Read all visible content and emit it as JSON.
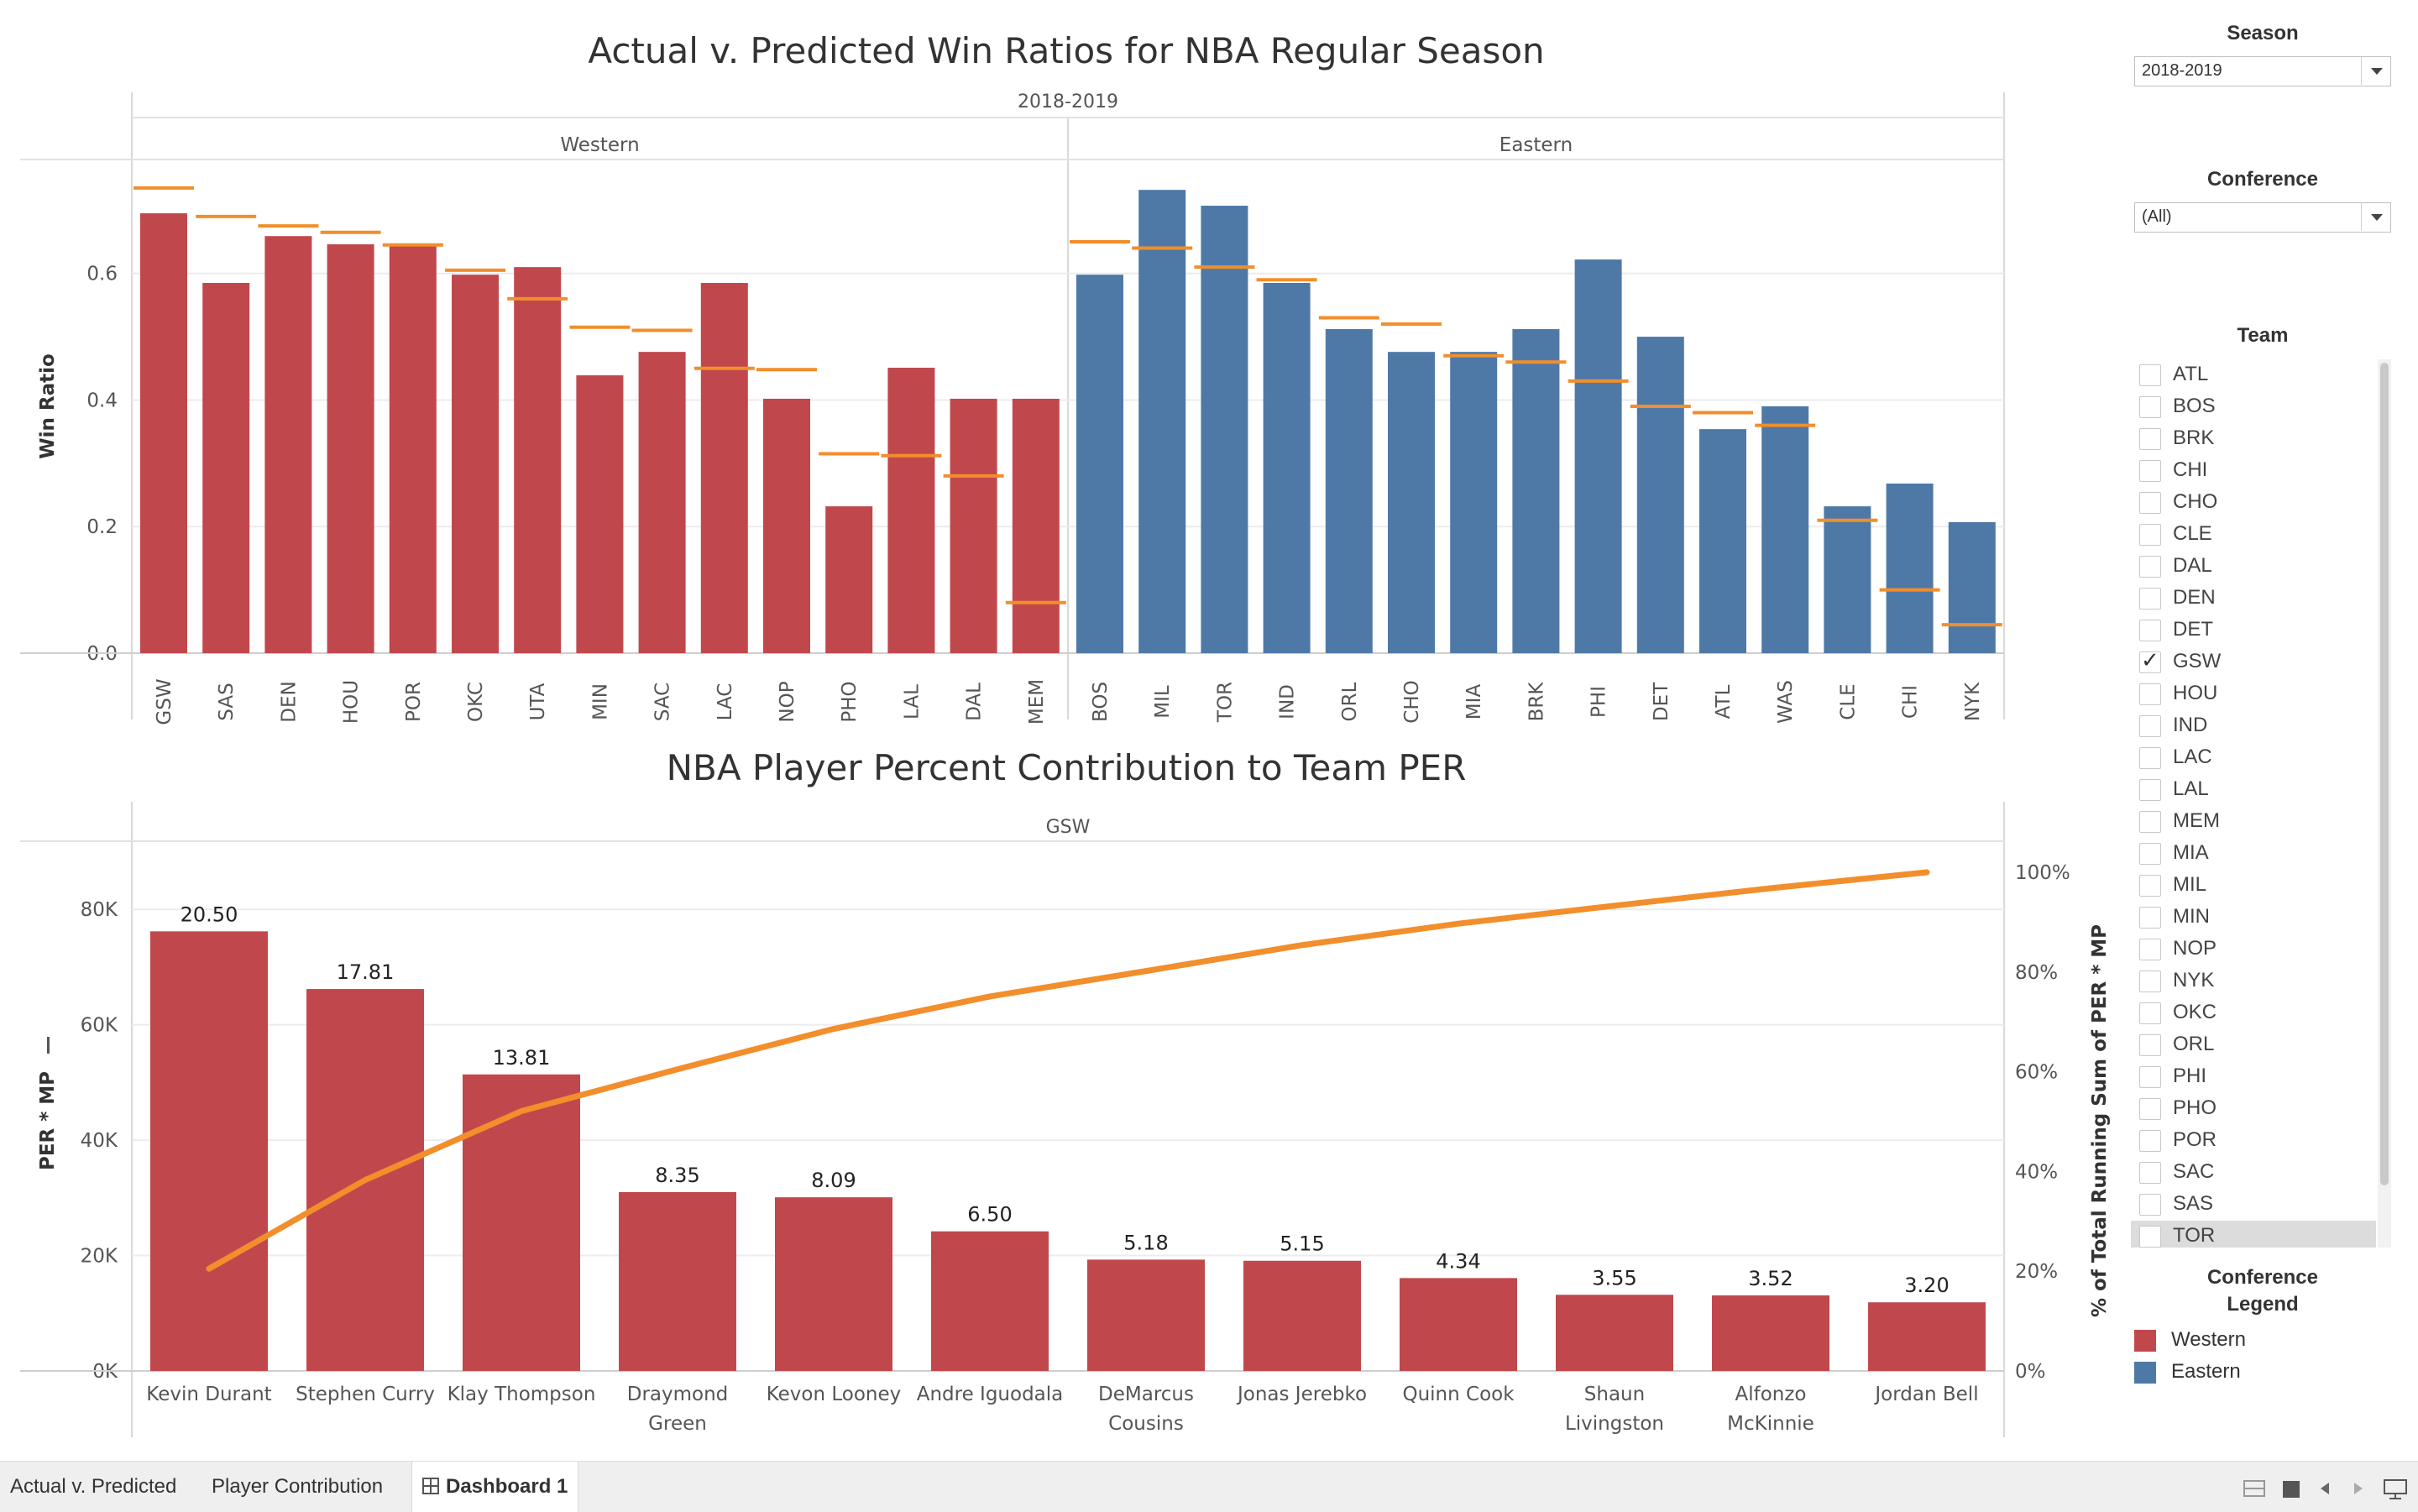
{
  "chart_data": [
    {
      "type": "bar",
      "title": "Actual v. Predicted Win Ratios for NBA Regular Season",
      "subtitle": "2018-2019",
      "ylabel": "Win Ratio",
      "ylim": [
        0,
        0.78
      ],
      "yticks": [
        "0.0",
        "0.2",
        "0.4",
        "0.6"
      ],
      "grid": true,
      "panels": [
        {
          "name": "Western",
          "color": "#c0484c",
          "categories": [
            "GSW",
            "SAS",
            "DEN",
            "HOU",
            "POR",
            "OKC",
            "UTA",
            "MIN",
            "SAC",
            "LAC",
            "NOP",
            "PHO",
            "LAL",
            "DAL",
            "MEM"
          ],
          "actual": [
            0.695,
            0.585,
            0.659,
            0.646,
            0.646,
            0.598,
            0.61,
            0.439,
            0.476,
            0.585,
            0.402,
            0.232,
            0.451,
            0.402,
            0.402
          ],
          "predicted": [
            0.735,
            0.69,
            0.675,
            0.665,
            0.645,
            0.605,
            0.56,
            0.515,
            0.51,
            0.45,
            0.448,
            0.315,
            0.312,
            0.28,
            0.08
          ]
        },
        {
          "name": "Eastern",
          "color": "#4e79a7",
          "categories": [
            "BOS",
            "MIL",
            "TOR",
            "IND",
            "ORL",
            "CHO",
            "MIA",
            "BRK",
            "PHI",
            "DET",
            "ATL",
            "WAS",
            "CLE",
            "CHI",
            "NYK"
          ],
          "actual": [
            0.598,
            0.732,
            0.707,
            0.585,
            0.512,
            0.476,
            0.476,
            0.512,
            0.622,
            0.5,
            0.354,
            0.39,
            0.232,
            0.268,
            0.207
          ],
          "predicted": [
            0.65,
            0.64,
            0.61,
            0.59,
            0.53,
            0.52,
            0.47,
            0.46,
            0.43,
            0.39,
            0.38,
            0.36,
            0.21,
            0.1,
            0.045
          ]
        }
      ],
      "predicted_color": "#f28e2b"
    },
    {
      "type": "bar",
      "title": "NBA Player Percent Contribution to Team PER",
      "subtitle": "GSW",
      "ylabel": "PER * MP",
      "y2label": "% of Total Running Sum of PER * MP",
      "ylim": [
        0,
        86000
      ],
      "yticks": [
        "0K",
        "20K",
        "40K",
        "60K",
        "80K"
      ],
      "y2ticks": [
        "0%",
        "20%",
        "40%",
        "60%",
        "80%",
        "100%"
      ],
      "categories": [
        "Kevin Durant",
        "Stephen Curry",
        "Klay Thompson",
        "Draymond Green",
        "Kevon Looney",
        "Andre Iguodala",
        "DeMarcus Cousins",
        "Jonas Jerebko",
        "Quinn Cook",
        "Shaun Livingston",
        "Alfonzo McKinnie",
        "Jordan Bell"
      ],
      "category_lines": [
        [
          "Kevin Durant"
        ],
        [
          "Stephen Curry"
        ],
        [
          "Klay Thompson"
        ],
        [
          "Draymond",
          "Green"
        ],
        [
          "Kevon Looney"
        ],
        [
          "Andre Iguodala"
        ],
        [
          "DeMarcus",
          "Cousins"
        ],
        [
          "Jonas Jerebko"
        ],
        [
          "Quinn Cook"
        ],
        [
          "Shaun",
          "Livingston"
        ],
        [
          "Alfonzo",
          "McKinnie"
        ],
        [
          "Jordan Bell"
        ]
      ],
      "values": [
        76200,
        66200,
        51400,
        31000,
        30100,
        24200,
        19300,
        19100,
        16100,
        13200,
        13100,
        11900
      ],
      "labels": [
        "20.50",
        "17.81",
        "13.81",
        "8.35",
        "8.09",
        "6.50",
        "5.18",
        "5.15",
        "4.34",
        "3.55",
        "3.52",
        "3.20"
      ],
      "running_pct": [
        20.5,
        38.3,
        52.1,
        60.5,
        68.6,
        75.1,
        80.2,
        85.4,
        89.7,
        93.3,
        96.8,
        100.0
      ],
      "bar_color": "#c0484c",
      "line_color": "#f28e2b"
    }
  ],
  "sidebar": {
    "season_label": "Season",
    "season_value": "2018-2019",
    "conference_label": "Conference",
    "conference_value": "(All)",
    "team_label": "Team",
    "teams": [
      "ATL",
      "BOS",
      "BRK",
      "CHI",
      "CHO",
      "CLE",
      "DAL",
      "DEN",
      "DET",
      "GSW",
      "HOU",
      "IND",
      "LAC",
      "LAL",
      "MEM",
      "MIA",
      "MIL",
      "MIN",
      "NOP",
      "NYK",
      "OKC",
      "ORL",
      "PHI",
      "PHO",
      "POR",
      "SAC",
      "SAS",
      "TOR"
    ],
    "checked_team": "GSW",
    "highlighted_team": "TOR",
    "legend_title_line1": "Conference",
    "legend_title_line2": "Legend",
    "legend": [
      {
        "label": "Western",
        "color": "#c0484c"
      },
      {
        "label": "Eastern",
        "color": "#4e79a7"
      }
    ]
  },
  "tabs": {
    "tab1": "Actual v. Predicted",
    "tab2": "Player Contribution",
    "tab3": "Dashboard 1"
  },
  "icons": [
    "grid-view-icon",
    "single-view-icon",
    "prev-arrow-icon",
    "next-arrow-icon",
    "presentation-icon",
    "sort-icon"
  ]
}
